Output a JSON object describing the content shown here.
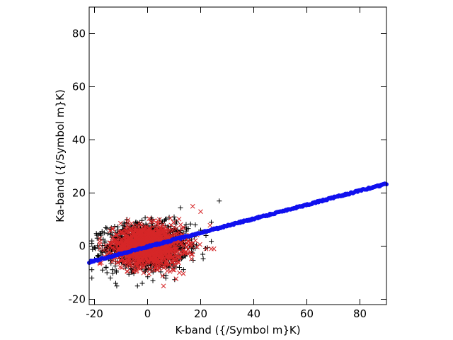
{
  "chart_data": {
    "type": "scatter",
    "title": "",
    "xlabel": "K-band ({/Symbol m}K)",
    "ylabel": "Ka-band ({/Symbol m}K)",
    "xlim": [
      -22,
      90
    ],
    "ylim": [
      -22,
      90
    ],
    "xticks": [
      -20,
      0,
      20,
      40,
      60,
      80
    ],
    "yticks": [
      -20,
      0,
      20,
      40,
      60,
      80
    ],
    "grid": false,
    "legend": "none",
    "series": [
      {
        "marker": "plus",
        "color": "#000000",
        "cloud": {
          "x_mean": 0,
          "x_sd": 7.5,
          "y_mean": 0,
          "y_sd": 4.2,
          "x_range": [
            -21,
            27
          ],
          "y_range": [
            -15,
            18
          ],
          "count": 1400
        },
        "values": [
          [
            -21,
            -12
          ],
          [
            -20,
            -5
          ],
          [
            -19,
            3
          ],
          [
            -17,
            -9
          ],
          [
            -14,
            -12
          ],
          [
            -12,
            -14
          ],
          [
            -4,
            8
          ],
          [
            -2,
            -14
          ],
          [
            2,
            -13
          ],
          [
            10,
            11
          ],
          [
            12,
            -8
          ],
          [
            14,
            7
          ],
          [
            18,
            8
          ],
          [
            20,
            6
          ],
          [
            22,
            4
          ],
          [
            24,
            9
          ],
          [
            27,
            17
          ]
        ]
      },
      {
        "marker": "cross",
        "color": "#d62728",
        "cloud": {
          "x_mean": 0,
          "x_sd": 6.5,
          "y_mean": 0,
          "y_sd": 3.6,
          "x_range": [
            -18,
            26
          ],
          "y_range": [
            -16,
            16
          ],
          "count": 1500
        },
        "values": [
          [
            -2,
            -8
          ],
          [
            6,
            -15
          ],
          [
            10,
            -9
          ],
          [
            12,
            -10
          ],
          [
            17,
            15
          ],
          [
            20,
            13
          ],
          [
            22,
            -1
          ],
          [
            24,
            -1
          ],
          [
            25,
            -1
          ]
        ]
      },
      {
        "marker": "line-points",
        "color": "#1010ee",
        "x_range": [
          -22,
          90
        ],
        "y_range": [
          -6,
          23.5
        ],
        "points": 320
      }
    ]
  }
}
